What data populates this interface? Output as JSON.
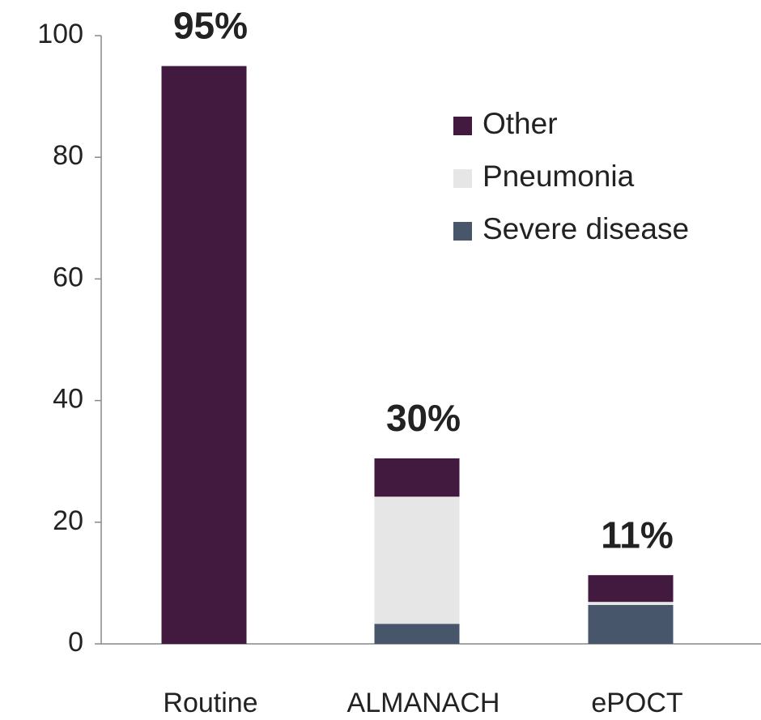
{
  "chart_data": {
    "type": "stacked_bar",
    "categories": [
      "Routine",
      "ALMANACH",
      "ePOCT"
    ],
    "series": [
      {
        "name": "Other",
        "color": "#431a3f",
        "values": [
          95,
          6.3,
          4.4
        ]
      },
      {
        "name": "Pneumonia",
        "color": "#e6e6e6",
        "values": [
          0,
          20.9,
          0.5
        ]
      },
      {
        "name": "Severe disease",
        "color": "#48566b",
        "values": [
          0,
          3.3,
          6.4
        ]
      }
    ],
    "totals": {
      "values": [
        95,
        30,
        11
      ],
      "value_labels": [
        "95%",
        "30%",
        "11%"
      ]
    },
    "ylim": [
      0,
      100
    ],
    "yticks": [
      0,
      20,
      40,
      60,
      80,
      100
    ],
    "grid": false
  }
}
